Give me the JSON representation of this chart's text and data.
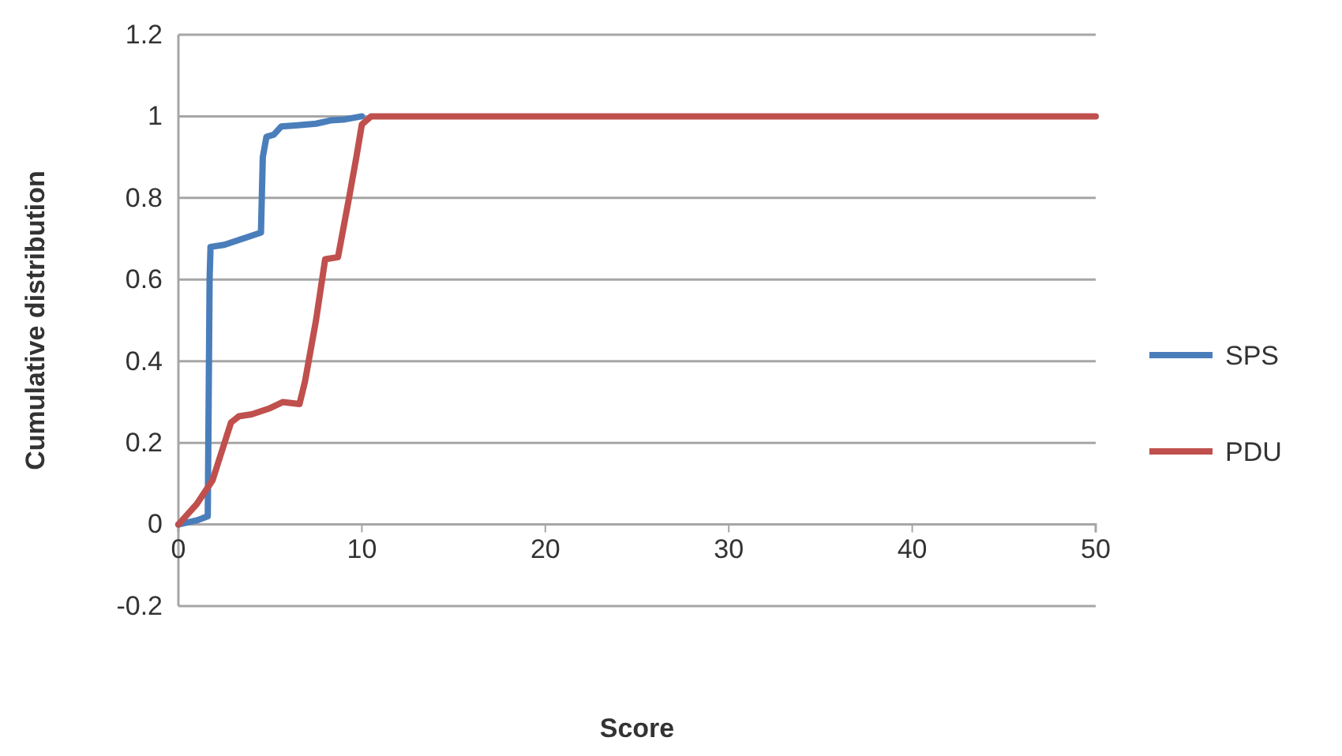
{
  "chart_data": {
    "type": "line",
    "xlabel": "Score",
    "ylabel": "Cumulative distribution",
    "xlim": [
      0,
      50
    ],
    "xticks": [
      0,
      10,
      20,
      30,
      40,
      50
    ],
    "ylim": [
      -0.2,
      1.2
    ],
    "yticks": [
      -0.2,
      0,
      0.2,
      0.4,
      0.6,
      0.8,
      1,
      1.2
    ],
    "grid": "y",
    "legend": "right",
    "marker": "none",
    "line_style": "solid",
    "series": [
      {
        "name": "SPS",
        "color": "#4a7ebb",
        "x": [
          0,
          1,
          1.6,
          1.7,
          1.75,
          2.5,
          3.5,
          4.5,
          4.6,
          4.8,
          5.2,
          5.6,
          6.5,
          7.5,
          8.3,
          9,
          10
        ],
        "values": [
          0,
          0.01,
          0.02,
          0.6,
          0.68,
          0.685,
          0.7,
          0.715,
          0.9,
          0.95,
          0.955,
          0.975,
          0.978,
          0.982,
          0.99,
          0.992,
          1
        ]
      },
      {
        "name": "PDU",
        "color": "#c0504d",
        "x": [
          0,
          1,
          1.86,
          2.3,
          2.87,
          3.3,
          4,
          5,
          5.7,
          6.6,
          6.9,
          7.5,
          8,
          8.7,
          9.3,
          9.7,
          10,
          10.5,
          12,
          50
        ],
        "values": [
          0,
          0.05,
          0.108,
          0.17,
          0.25,
          0.265,
          0.27,
          0.285,
          0.3,
          0.295,
          0.35,
          0.5,
          0.65,
          0.655,
          0.8,
          0.9,
          0.98,
          1,
          1,
          1
        ]
      }
    ]
  }
}
